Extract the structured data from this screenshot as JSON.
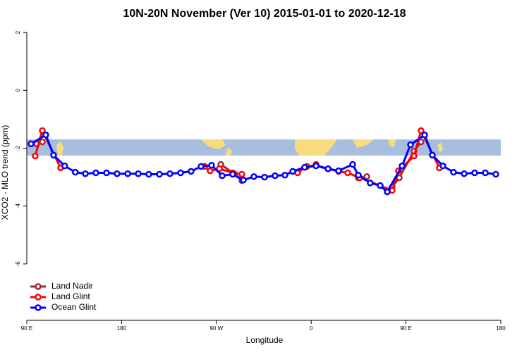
{
  "chart_data": {
    "type": "line",
    "title": "10N-20N November (Ver 10)   2015-01-01 to 2020-12-18",
    "x_label": "Longitude",
    "y_label": "XCO2 - MLO trend (ppm)",
    "xlim": [
      90,
      540
    ],
    "ylim": [
      -7.95,
      2.2
    ],
    "xticks": [
      {
        "value": 90,
        "label": "90 E"
      },
      180,
      {
        "value": 270,
        "label": "90 W"
      },
      {
        "value": 360,
        "label": "0"
      },
      {
        "value": 450,
        "label": "90 E"
      },
      {
        "value": 540,
        "label": "180"
      }
    ],
    "yticks": [
      2,
      0,
      -2,
      -4,
      -6
    ],
    "legend": "bottom-left",
    "series": [
      {
        "name": "Land Nadir",
        "color": "#a52a2a",
        "x": [
          99.4,
          104.7,
          null,
          274.2,
          286.9,
          294.2,
          null,
          364.6,
          null,
          404.7,
          412.8,
          null,
          436.9,
          443.6,
          457.6,
          464.3
        ],
        "values": [
          -1.85,
          -1.78,
          null,
          -2.56,
          -2.88,
          -3.12,
          null,
          -2.56,
          null,
          -3.02,
          -2.98,
          null,
          -3.34,
          -3.02,
          -2.1,
          -1.78
        ]
      },
      {
        "name": "Land Glint",
        "color": "#ff0000",
        "x": [
          98,
          104.7,
          122.1,
          null,
          258.8,
          264,
          272.8,
          285.5,
          294.2,
          null,
          347.1,
          355.9,
          364.6,
          376,
          386,
          394.7,
          406,
          436.9,
          442.9,
          457.6,
          464.3,
          481.7
        ],
        "values": [
          -2.27,
          -1.39,
          -2.68,
          null,
          -2.63,
          -2.78,
          -2.71,
          -2.85,
          -2.9,
          null,
          -2.85,
          -2.63,
          -2.59,
          -2.71,
          -2.8,
          -2.85,
          -3.02,
          -3.46,
          -2.78,
          -2.27,
          -1.39,
          -2.68
        ]
      },
      {
        "name": "Ocean Glint",
        "color": "#0000ff",
        "x": [
          94,
          108,
          115.4,
          126,
          136,
          145.6,
          155.6,
          165.7,
          175.7,
          185.8,
          195.8,
          205.8,
          215.9,
          225.9,
          236,
          246,
          255.4,
          265.4,
          275.5,
          285.5,
          295.6,
          305.6,
          315.7,
          325.7,
          335.1,
          342.5,
          353.8,
          364.6,
          376,
          386,
          399.4,
          404.7,
          416,
          425.5,
          432.2,
          446.3,
          454.3,
          467.7,
          475,
          485.1,
          495.1,
          505.2,
          515.2,
          525.3,
          535.3
        ],
        "values": [
          -1.85,
          -1.54,
          -2.24,
          -2.61,
          -2.83,
          -2.88,
          -2.85,
          -2.85,
          -2.88,
          -2.88,
          -2.88,
          -2.9,
          -2.9,
          -2.88,
          -2.85,
          -2.8,
          -2.63,
          -2.59,
          -2.95,
          -2.9,
          -3.1,
          -2.98,
          -3.0,
          -2.95,
          -2.93,
          -2.8,
          -2.66,
          -2.61,
          -2.71,
          -2.78,
          -2.56,
          -2.93,
          -3.2,
          -3.29,
          -3.51,
          -2.61,
          -1.88,
          -1.54,
          -2.24,
          -2.61,
          -2.83,
          -2.88,
          -2.85,
          -2.85,
          -2.9
        ]
      }
    ]
  }
}
